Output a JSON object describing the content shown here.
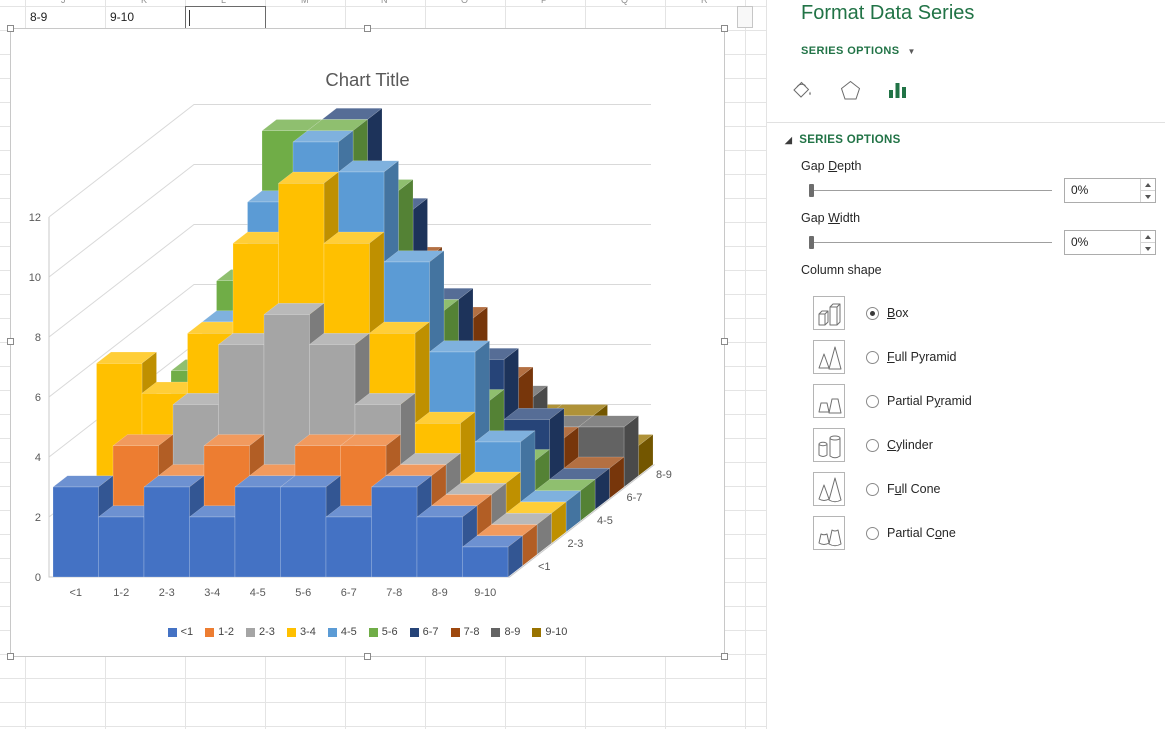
{
  "sheet": {
    "column_letters": [
      "J",
      "K",
      "L",
      "M",
      "N",
      "O",
      "P",
      "Q",
      "R"
    ],
    "cells": [
      "8-9",
      "9-10"
    ]
  },
  "panel": {
    "accent_color": "#217346",
    "title": "Format Data Series",
    "header": "SERIES OPTIONS",
    "tabs": [
      {
        "icon": "paint-bucket"
      },
      {
        "icon": "pentagon"
      },
      {
        "icon": "column-chart",
        "selected": true
      }
    ],
    "section": "SERIES OPTIONS",
    "gap_depth": {
      "label": "Gap Depth",
      "accel": 4,
      "value": "0%"
    },
    "gap_width": {
      "label": "Gap Width",
      "accel": 4,
      "value": "0%"
    },
    "column_shape_label": "Column shape",
    "shape_options": [
      {
        "label": "Box",
        "accel": 0,
        "selected": true,
        "icon": "box"
      },
      {
        "label": "Full Pyramid",
        "accel": 0,
        "selected": false,
        "icon": "full-pyramid"
      },
      {
        "label": "Partial Pyramid",
        "accel": 9,
        "selected": false,
        "icon": "partial-pyramid"
      },
      {
        "label": "Cylinder",
        "accel": 0,
        "selected": false,
        "icon": "cylinder"
      },
      {
        "label": "Full Cone",
        "accel": 1,
        "selected": false,
        "icon": "full-cone"
      },
      {
        "label": "Partial Cone",
        "accel": 9,
        "selected": false,
        "icon": "partial-cone"
      }
    ]
  },
  "chart_data": {
    "type": "bar",
    "variant": "3d-column",
    "title": "Chart Title",
    "categories": [
      "<1",
      "1-2",
      "2-3",
      "3-4",
      "4-5",
      "5-6",
      "6-7",
      "7-8",
      "8-9",
      "9-10"
    ],
    "series": [
      {
        "name": "<1",
        "color": "#4472C4",
        "values": [
          3,
          2,
          3,
          2,
          3,
          3,
          2,
          3,
          2,
          1
        ]
      },
      {
        "name": "1-2",
        "color": "#ED7D31",
        "values": [
          2,
          4,
          3,
          4,
          3,
          4,
          4,
          3,
          2,
          1
        ]
      },
      {
        "name": "2-3",
        "color": "#A5A5A5",
        "values": [
          2,
          3,
          5,
          7,
          8,
          7,
          5,
          3,
          2,
          1
        ]
      },
      {
        "name": "3-4",
        "color": "#FFC000",
        "values": [
          6,
          5,
          7,
          10,
          12,
          10,
          7,
          4,
          2,
          1
        ]
      },
      {
        "name": "4-5",
        "color": "#5B9BD5",
        "values": [
          3,
          4,
          7,
          11,
          13,
          12,
          9,
          6,
          3,
          1
        ]
      },
      {
        "name": "5-6",
        "color": "#70AD47",
        "values": [
          2,
          5,
          8,
          13,
          13,
          11,
          7,
          4,
          2,
          1
        ]
      },
      {
        "name": "6-7",
        "color": "#264478",
        "values": [
          2,
          3,
          6,
          10,
          13,
          10,
          7,
          5,
          3,
          1
        ]
      },
      {
        "name": "7-8",
        "color": "#9E480E",
        "values": [
          1,
          3,
          5,
          7,
          9,
          8,
          6,
          4,
          2,
          1
        ]
      },
      {
        "name": "8-9",
        "color": "#636363",
        "values": [
          1,
          2,
          4,
          5,
          6,
          5,
          4,
          3,
          2,
          2
        ]
      },
      {
        "name": "9-10",
        "color": "#997300",
        "values": [
          1,
          2,
          3,
          4,
          5,
          4,
          3,
          2,
          2,
          1
        ]
      }
    ],
    "y_ticks": [
      0,
      2,
      4,
      6,
      8,
      10,
      12
    ],
    "ylim": [
      0,
      13
    ],
    "depth_axis_labels": [
      "<1",
      "2-3",
      "4-5",
      "6-7",
      "8-9"
    ],
    "legend_position": "bottom",
    "gridlines": true
  }
}
